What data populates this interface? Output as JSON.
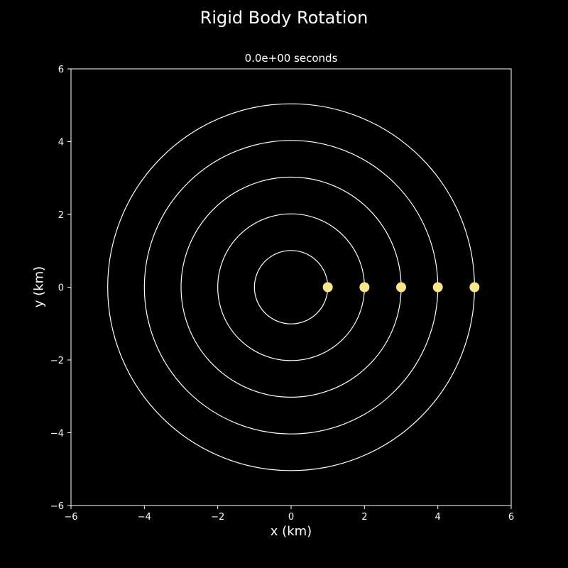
{
  "figure": {
    "title": "Rigid Body Rotation",
    "background": "#000000",
    "foreground": "#ffffff"
  },
  "chart_data": {
    "type": "scatter",
    "title": "0.0e+00 seconds",
    "xlabel": "x (km)",
    "ylabel": "y (km)",
    "xlim": [
      -6,
      6
    ],
    "ylim": [
      -6,
      6
    ],
    "xticks": [
      -6,
      -4,
      -2,
      0,
      2,
      4,
      6
    ],
    "yticks": [
      -6,
      -4,
      -2,
      0,
      2,
      4,
      6
    ],
    "xtick_labels": [
      "−6",
      "−4",
      "−2",
      "0",
      "2",
      "4",
      "6"
    ],
    "ytick_labels": [
      "−6",
      "−4",
      "−2",
      "0",
      "2",
      "4",
      "6"
    ],
    "grid": false,
    "circles": [
      {
        "center": [
          0,
          0
        ],
        "radius": 1
      },
      {
        "center": [
          0,
          0
        ],
        "radius": 2
      },
      {
        "center": [
          0,
          0
        ],
        "radius": 3
      },
      {
        "center": [
          0,
          0
        ],
        "radius": 4
      },
      {
        "center": [
          0,
          0
        ],
        "radius": 5
      }
    ],
    "points": {
      "x": [
        1,
        2,
        3,
        4,
        5
      ],
      "y": [
        0,
        0,
        0,
        0,
        0
      ],
      "color": "#f7e68a"
    },
    "line_color": "#ffffff"
  }
}
